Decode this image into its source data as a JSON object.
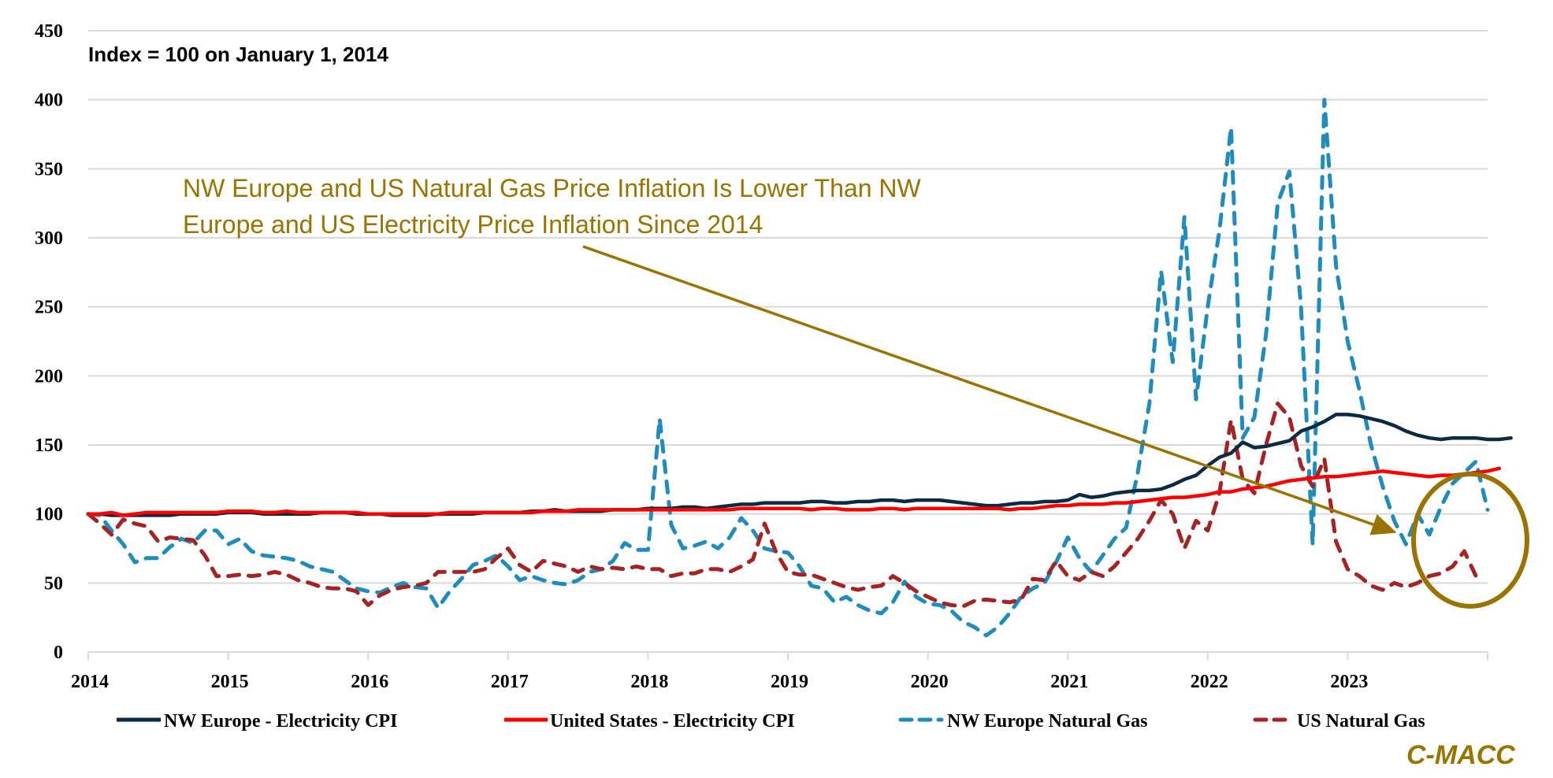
{
  "chart_data": {
    "type": "line",
    "title": "",
    "subtitle": "Index = 100 on January 1, 2014",
    "xlabel": "",
    "ylabel": "",
    "ylim": [
      0,
      450
    ],
    "yticks": [
      "0",
      "50",
      "100",
      "150",
      "200",
      "250",
      "300",
      "350",
      "400",
      "450"
    ],
    "ytick_values": [
      0,
      50,
      100,
      150,
      200,
      250,
      300,
      350,
      400,
      450
    ],
    "xticks": [
      "2014",
      "2015",
      "2016",
      "2017",
      "2018",
      "2019",
      "2020",
      "2021",
      "2022",
      "2023"
    ],
    "x_start": "2014-01",
    "x_frequency": "monthly",
    "grid": true,
    "legend_position": "bottom",
    "series": [
      {
        "name": "NW Europe - Electricity CPI",
        "color": "#0d2a45",
        "style": "solid",
        "values": [
          100,
          100,
          99,
          99,
          99,
          99,
          99,
          99,
          100,
          100,
          100,
          100,
          101,
          101,
          101,
          100,
          100,
          100,
          100,
          100,
          101,
          101,
          101,
          100,
          100,
          100,
          99,
          99,
          99,
          99,
          100,
          100,
          100,
          100,
          101,
          101,
          101,
          101,
          102,
          102,
          103,
          102,
          102,
          102,
          102,
          103,
          103,
          103,
          104,
          104,
          104,
          105,
          105,
          104,
          105,
          106,
          107,
          107,
          108,
          108,
          108,
          108,
          109,
          109,
          108,
          108,
          109,
          109,
          110,
          110,
          109,
          110,
          110,
          110,
          109,
          108,
          107,
          106,
          106,
          107,
          108,
          108,
          109,
          109,
          110,
          114,
          112,
          113,
          115,
          116,
          117,
          117,
          118,
          121,
          125,
          128,
          135,
          141,
          144,
          152,
          148,
          149,
          151,
          153,
          160,
          163,
          167,
          172,
          172,
          171,
          169,
          167,
          164,
          160,
          157,
          155,
          154,
          155,
          155,
          155,
          154,
          154,
          155
        ]
      },
      {
        "name": "United States - Electricity CPI",
        "color": "#ff0000",
        "style": "solid",
        "values": [
          100,
          100,
          101,
          99,
          100,
          101,
          101,
          101,
          101,
          101,
          101,
          101,
          102,
          102,
          102,
          101,
          101,
          102,
          101,
          101,
          101,
          101,
          101,
          101,
          100,
          100,
          100,
          100,
          100,
          100,
          100,
          101,
          101,
          101,
          101,
          101,
          101,
          101,
          101,
          102,
          102,
          102,
          103,
          103,
          103,
          103,
          103,
          103,
          103,
          103,
          103,
          103,
          103,
          103,
          103,
          103,
          104,
          104,
          104,
          104,
          104,
          104,
          103,
          104,
          104,
          103,
          103,
          103,
          104,
          104,
          103,
          104,
          104,
          104,
          104,
          104,
          104,
          104,
          104,
          103,
          104,
          104,
          105,
          106,
          106,
          107,
          107,
          107,
          108,
          108,
          109,
          110,
          111,
          112,
          112,
          113,
          114,
          116,
          116,
          118,
          119,
          120,
          122,
          124,
          125,
          126,
          127,
          127,
          128,
          129,
          130,
          131,
          130,
          129,
          128,
          127,
          128,
          128,
          129,
          130,
          131,
          133
        ]
      },
      {
        "name": "NW Europe Natural Gas",
        "color": "#1f8cc0",
        "style": "dashed",
        "values": [
          100,
          99,
          88,
          78,
          65,
          68,
          68,
          76,
          82,
          79,
          88,
          88,
          78,
          82,
          73,
          70,
          69,
          68,
          66,
          62,
          60,
          58,
          52,
          46,
          44,
          43,
          47,
          50,
          47,
          46,
          32,
          44,
          53,
          63,
          66,
          70,
          62,
          52,
          55,
          52,
          50,
          49,
          52,
          58,
          60,
          66,
          79,
          74,
          74,
          169,
          92,
          75,
          77,
          80,
          75,
          83,
          97,
          88,
          75,
          73,
          72,
          62,
          48,
          46,
          36,
          40,
          34,
          30,
          28,
          36,
          51,
          40,
          35,
          34,
          30,
          22,
          18,
          12,
          18,
          28,
          40,
          46,
          50,
          65,
          83,
          68,
          58,
          70,
          82,
          90,
          130,
          180,
          276,
          210,
          315,
          183,
          250,
          305,
          380,
          155,
          170,
          230,
          325,
          348,
          250,
          78,
          400,
          280,
          225,
          190,
          150,
          120,
          95,
          78,
          100,
          85,
          105,
          122,
          130,
          138,
          103
        ]
      },
      {
        "name": "US Natural Gas",
        "color": "#a52323",
        "style": "dashed",
        "values": [
          100,
          93,
          85,
          96,
          93,
          91,
          80,
          83,
          82,
          81,
          70,
          55,
          55,
          56,
          55,
          56,
          58,
          56,
          52,
          50,
          47,
          46,
          46,
          44,
          34,
          41,
          45,
          47,
          48,
          50,
          58,
          58,
          58,
          58,
          60,
          68,
          75,
          63,
          58,
          66,
          64,
          62,
          58,
          62,
          60,
          61,
          60,
          62,
          60,
          60,
          55,
          57,
          57,
          60,
          60,
          58,
          62,
          67,
          93,
          72,
          58,
          56,
          56,
          53,
          50,
          47,
          45,
          47,
          48,
          55,
          50,
          44,
          40,
          36,
          34,
          33,
          37,
          38,
          37,
          36,
          38,
          53,
          52,
          66,
          55,
          52,
          58,
          55,
          62,
          72,
          82,
          95,
          110,
          100,
          75,
          95,
          88,
          115,
          168,
          125,
          115,
          150,
          180,
          170,
          135,
          120,
          140,
          80,
          60,
          55,
          48,
          45,
          50,
          47,
          50,
          55,
          57,
          62,
          73,
          55
        ]
      }
    ],
    "annotations": [
      {
        "text_lines": [
          "NW Europe and US Natural Gas Price Inflation Is Lower Than NW",
          "Europe and US Electricity Price Inflation Since 2014"
        ],
        "type": "arrow-callout",
        "color": "#9a7300",
        "arrow_from": {
          "x": "2018-01",
          "y": 297
        },
        "arrow_to": {
          "x": "2023-06",
          "y": 87
        }
      },
      {
        "type": "ellipse-highlight",
        "color": "#9a7300",
        "center": {
          "x": "2023-12",
          "y": 81
        }
      }
    ]
  },
  "footer": {
    "brand": "C-MACC"
  }
}
